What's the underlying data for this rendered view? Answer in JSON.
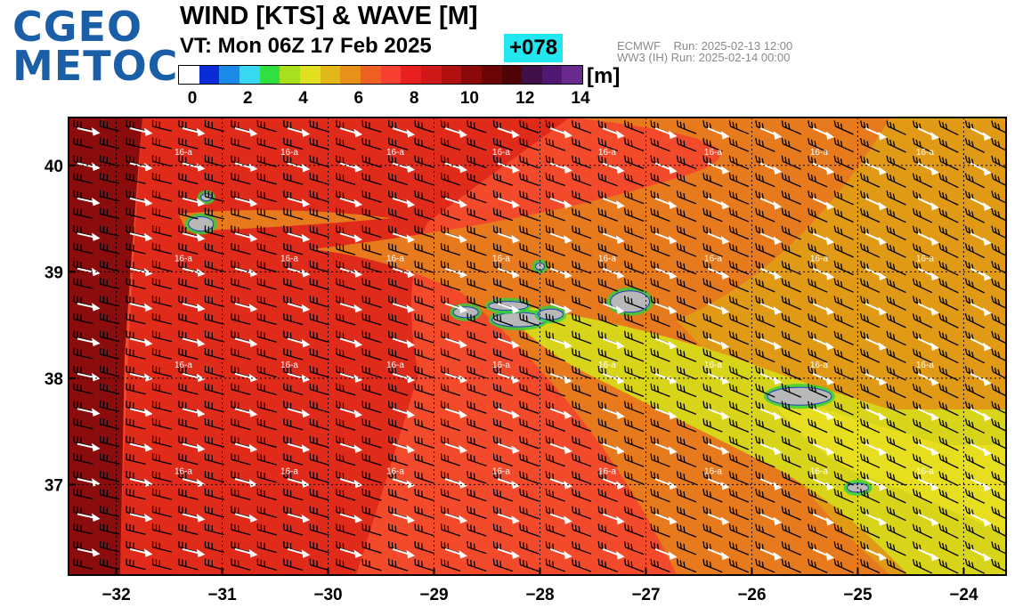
{
  "logo": {
    "line1": "CGEO",
    "line2": "METOC"
  },
  "title": "WIND [KTS] & WAVE [M]",
  "valid_time": "VT: Mon 06Z 17 Feb 2025",
  "forecast_offset": "+078",
  "runs": {
    "ecmwf": "ECMWF    Run: 2025-02-13 12:00",
    "ww3": "WW3 (IH) Run: 2025-02-14 00:00"
  },
  "colorbar": {
    "unit": "[m]",
    "ticks": [
      "0",
      "2",
      "4",
      "6",
      "8",
      "10",
      "12",
      "14"
    ],
    "tick_values": [
      0,
      2,
      4,
      6,
      8,
      10,
      12,
      14
    ],
    "colors": [
      "#ffffff",
      "#0a2cd8",
      "#1a8ce8",
      "#38d8f0",
      "#30e040",
      "#a8e020",
      "#e0e020",
      "#e0b818",
      "#e89018",
      "#f06020",
      "#f84030",
      "#e82020",
      "#d01818",
      "#b01010",
      "#8c0a0a",
      "#6a0606",
      "#500408",
      "#40104a",
      "#501870",
      "#6a2a90"
    ]
  },
  "map": {
    "lon_ticks": [
      "−32",
      "−31",
      "−30",
      "−29",
      "−28",
      "−27",
      "−26",
      "−25",
      "−24"
    ],
    "lon_values": [
      -32,
      -31,
      -30,
      -29,
      -28,
      -27,
      -26,
      -25,
      -24
    ],
    "lat_ticks": [
      "40",
      "39",
      "38",
      "37"
    ],
    "lat_values": [
      40,
      39,
      38,
      37
    ],
    "lon_range": [
      -32.45,
      -23.6
    ],
    "lat_range": [
      36.15,
      40.45
    ],
    "wind_label": "16-a",
    "colors": {
      "deep_red": "#b41212",
      "dark_red": "#8a0c0c",
      "red": "#e02a1a",
      "red_orange": "#f24a2a",
      "orange": "#e87a1e",
      "dark_orange": "#e09a16",
      "yellow": "#d8d41a",
      "light_yellow": "#e6de1e",
      "land": "#b8b8b8",
      "arrow": "#ffffff",
      "barb": "#000000",
      "grid": "#000000"
    }
  }
}
